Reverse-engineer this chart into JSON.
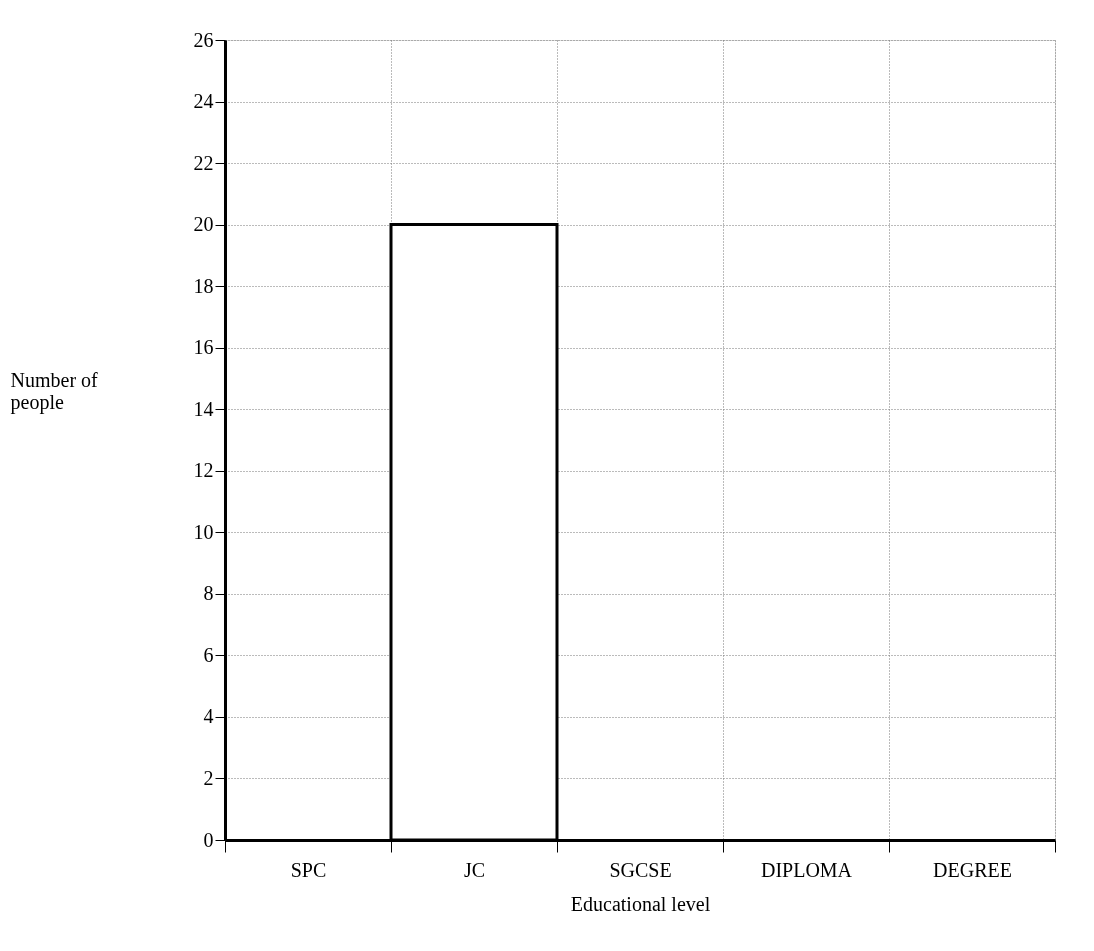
{
  "chart_data": {
    "type": "bar",
    "xlabel": "Educational level",
    "ylabel": "Number of\npeople",
    "categories": [
      "SPC",
      "JC",
      "SGCSE",
      "DIPLOMA",
      "DEGREE"
    ],
    "values": [
      null,
      20,
      null,
      null,
      null
    ],
    "color": "#ffffff",
    "ylim": [
      0,
      26
    ],
    "yticks": [
      0,
      2,
      4,
      6,
      8,
      10,
      12,
      14,
      16,
      18,
      20,
      22,
      24,
      26
    ],
    "grid": true
  }
}
